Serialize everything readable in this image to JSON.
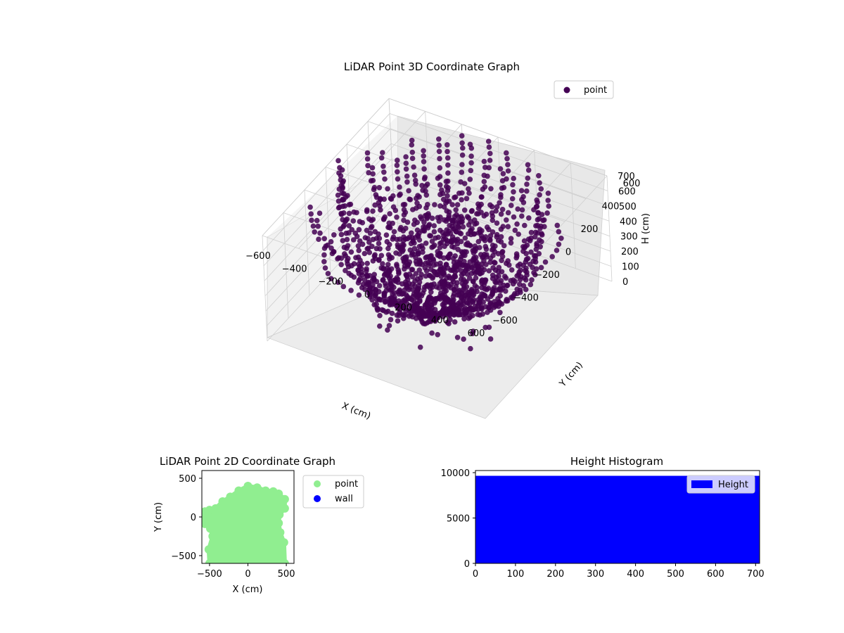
{
  "chart_data": [
    {
      "type": "scatter",
      "projection": "3d",
      "title": "LiDAR Point 3D Coordinate Graph",
      "xlabel": "X (cm)",
      "ylabel": "Y (cm)",
      "zlabel": "H (cm)",
      "xticks": [
        "−600",
        "−400",
        "−200",
        "0",
        "200",
        "400",
        "600"
      ],
      "yticks": [
        "−600",
        "−400",
        "−200",
        "0",
        "200",
        "400",
        "600"
      ],
      "zticks": [
        "0",
        "100",
        "200",
        "300",
        "400",
        "500",
        "600",
        "700"
      ],
      "xlim": [
        -600,
        600
      ],
      "ylim": [
        -600,
        600
      ],
      "zlim": [
        700,
        0
      ],
      "grid": true,
      "legend": {
        "placement": "upper-right",
        "entries": [
          {
            "label": "point",
            "color": "#440154"
          }
        ]
      },
      "point_color": "#440154",
      "point_shape": "radial sweep rings around origin, radius up to ~600 cm"
    },
    {
      "type": "scatter",
      "title": "LiDAR Point 2D Coordinate Graph",
      "xlabel": "X (cm)",
      "ylabel": "Y (cm)",
      "xticks": [
        "−500",
        "0",
        "500"
      ],
      "yticks": [
        "−500",
        "0",
        "500"
      ],
      "xlim": [
        -600,
        600
      ],
      "ylim": [
        -600,
        600
      ],
      "legend": {
        "placement": "outside-right",
        "entries": [
          {
            "label": "point",
            "color": "#90ee90"
          },
          {
            "label": "wall",
            "color": "#0000ff"
          }
        ]
      },
      "footprint_outline": [
        [
          -560,
          70
        ],
        [
          -500,
          90
        ],
        [
          -420,
          110
        ],
        [
          -330,
          200
        ],
        [
          -230,
          260
        ],
        [
          -120,
          340
        ],
        [
          0,
          400
        ],
        [
          120,
          380
        ],
        [
          230,
          340
        ],
        [
          330,
          330
        ],
        [
          400,
          300
        ],
        [
          480,
          230
        ],
        [
          480,
          110
        ],
        [
          410,
          30
        ],
        [
          400,
          -80
        ],
        [
          420,
          -200
        ],
        [
          470,
          -330
        ],
        [
          480,
          -600
        ],
        [
          -500,
          -600
        ],
        [
          -510,
          -420
        ],
        [
          -460,
          -250
        ],
        [
          -490,
          -150
        ],
        [
          -560,
          -90
        ],
        [
          -600,
          0
        ]
      ]
    },
    {
      "type": "bar",
      "title": "Height Histogram",
      "legend": {
        "placement": "upper-right",
        "entries": [
          {
            "label": "Height",
            "color": "#0000ff"
          }
        ]
      },
      "xticks": [
        "0",
        "100",
        "200",
        "300",
        "400",
        "500",
        "600",
        "700"
      ],
      "yticks": [
        "0",
        "5000",
        "10000"
      ],
      "xlim": [
        0,
        710
      ],
      "ylim": [
        0,
        10000
      ],
      "bins": [
        {
          "from": 0,
          "to": 710,
          "count": 9650
        }
      ],
      "bar_color": "#0000ff"
    }
  ]
}
